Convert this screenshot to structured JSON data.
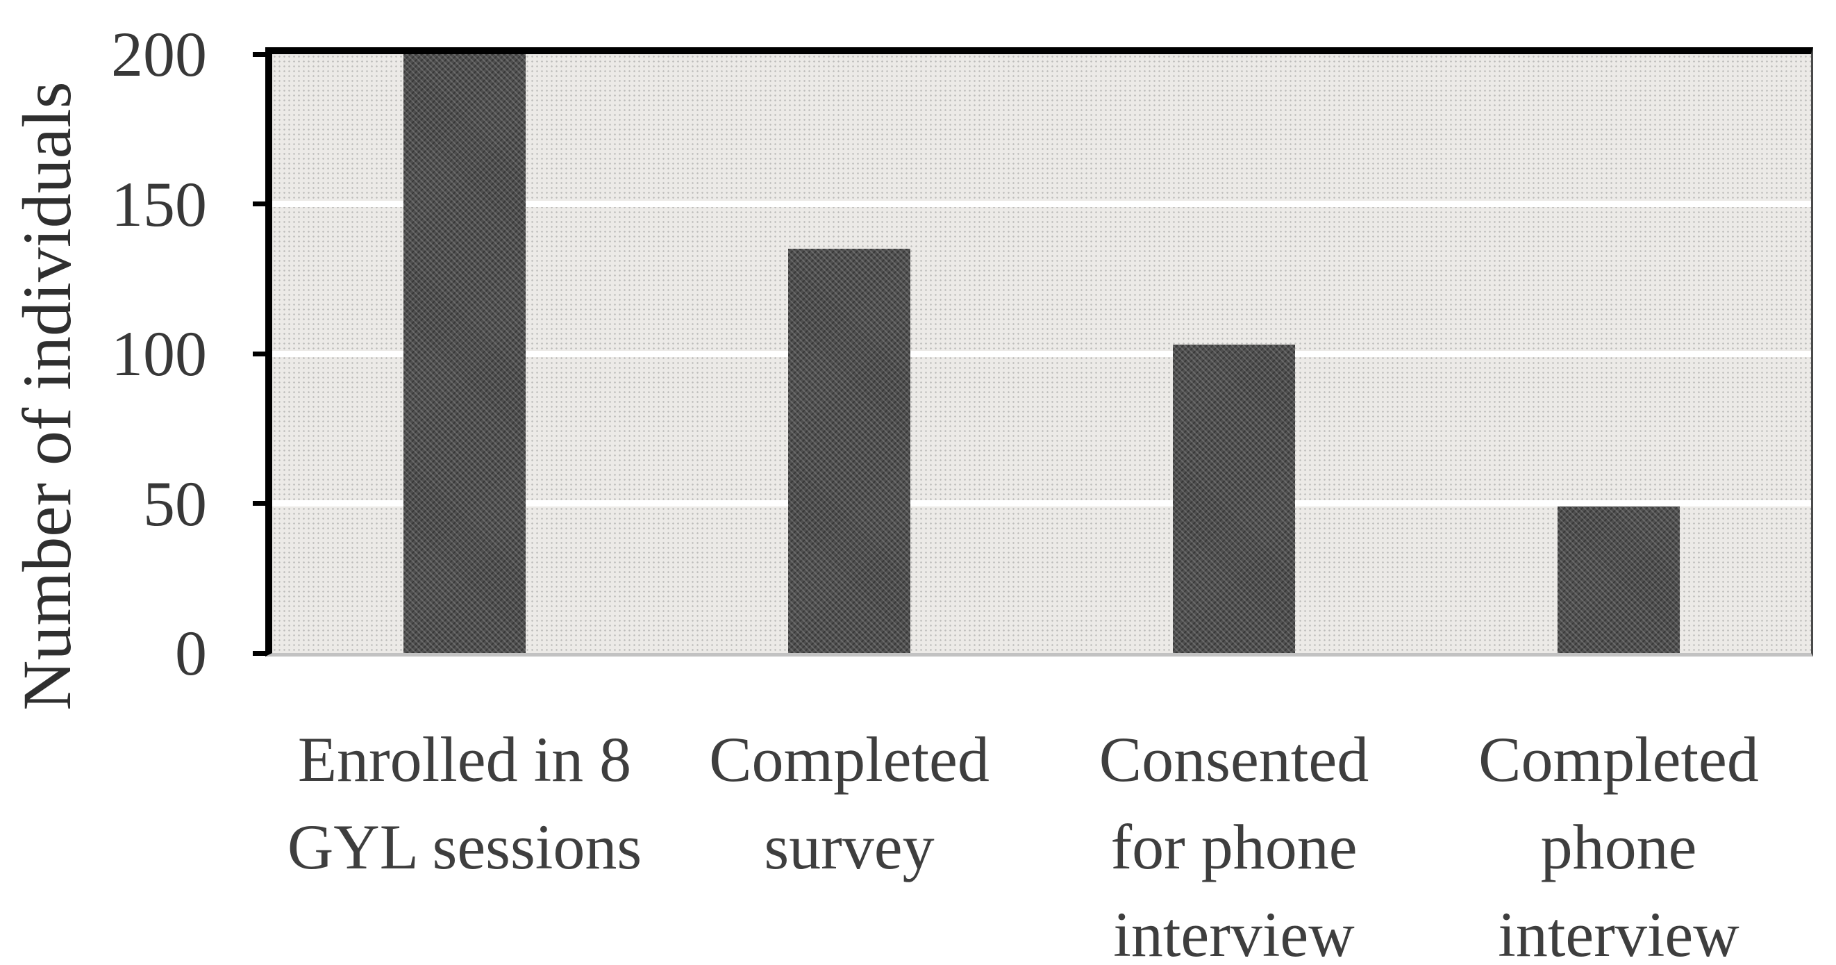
{
  "chart_data": {
    "type": "bar",
    "title": "",
    "categories": [
      "Enrolled in 8 GYL sessions",
      "Completed survey",
      "Consented for phone interview",
      "Completed phone interview"
    ],
    "category_lines": [
      [
        "Enrolled in 8",
        "GYL sessions"
      ],
      [
        "Completed",
        "survey"
      ],
      [
        "Consented",
        "for phone",
        "interview"
      ],
      [
        "Completed",
        "phone",
        "interview"
      ]
    ],
    "values": [
      200,
      135,
      103,
      49
    ],
    "xlabel": "",
    "ylabel": "Number of individuals",
    "ylim": [
      0,
      200
    ],
    "yticks": [
      0,
      50,
      100,
      150,
      200
    ],
    "gridline_values": [
      50,
      100,
      150
    ],
    "legend": "none",
    "grid": "horizontal white gridlines every 50",
    "colors": {
      "bar": "#4f4f4f",
      "plot_background": "#eceae7",
      "gridline": "#ffffff",
      "axis_border": "#000000",
      "tick_text": "#383838",
      "category_text": "#3e3e3e"
    }
  }
}
